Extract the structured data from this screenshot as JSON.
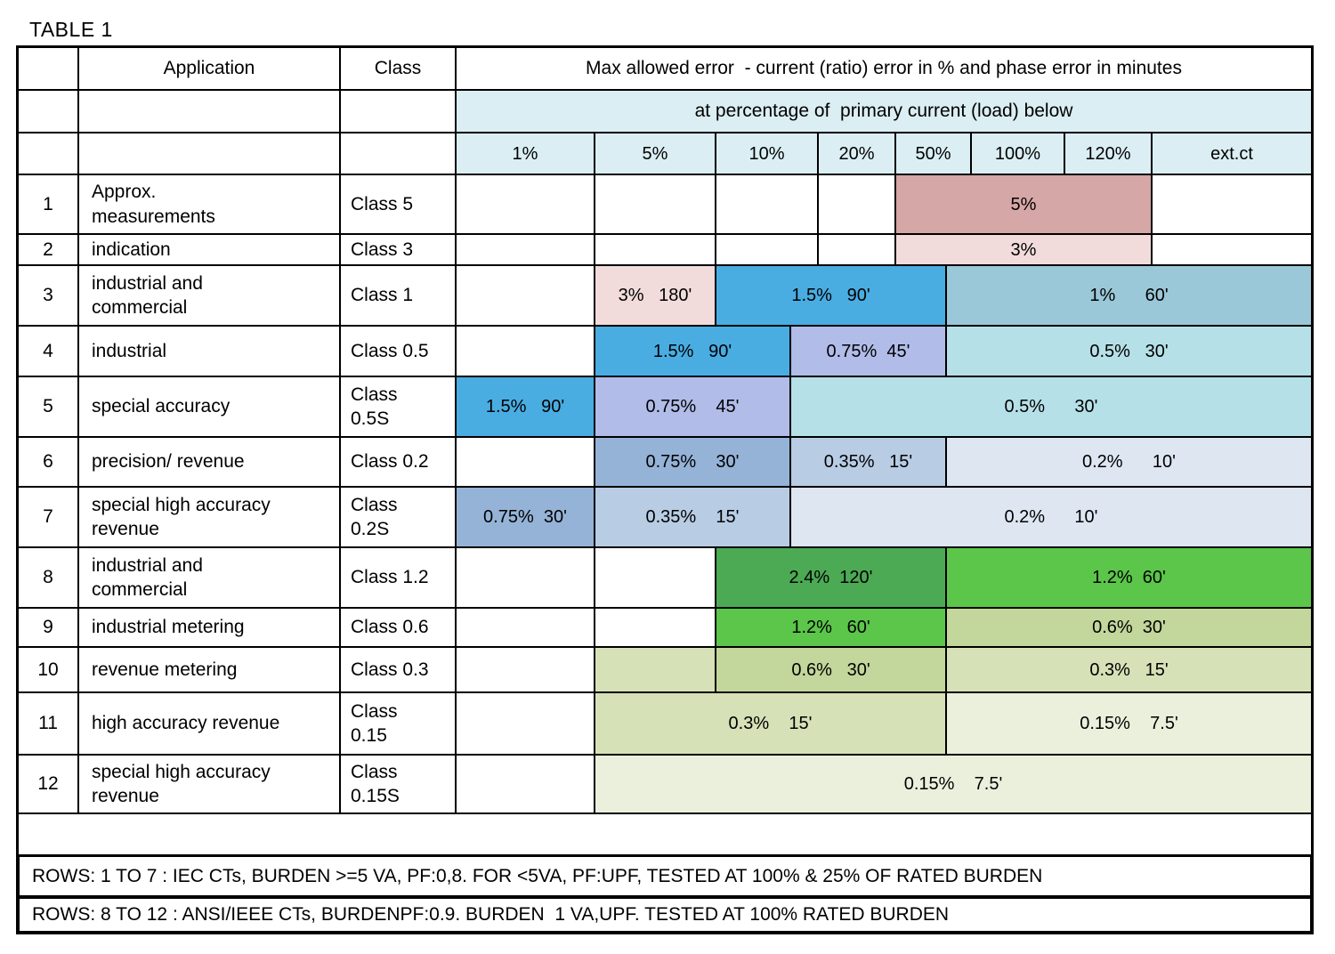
{
  "title": "TABLE 1",
  "header": {
    "application": "Application",
    "class": "Class",
    "max_error": "Max allowed error  - current (ratio) error in % and phase error in minutes",
    "at_percentage": "at percentage of  primary current (load) below",
    "load_levels": [
      "1%",
      "5%",
      "10%",
      "20%",
      "50%",
      "100%",
      "120%",
      "ext.ct"
    ]
  },
  "colors": {
    "header_blue": "#daeef3",
    "rose": "#d5a7a6",
    "pink_light": "#f1dcdb",
    "sky_blue": "#49ade2",
    "steel_blue": "#9ac8d8",
    "periwinkle": "#b1bce9",
    "light_cyan": "#b6e0e7",
    "slate_blue": "#95b3d7",
    "gray_blue": "#b8cce4",
    "pale_lavender": "#dde6f1",
    "med_green": "#4caa54",
    "bright_green": "#5bc64a",
    "sage": "#c3d69b",
    "light_sage": "#d6e1b7",
    "pale_sage": "#ebf0dd"
  },
  "rows": [
    {
      "num": "1",
      "application": "Approx.\nmeasurements",
      "class": "Class 5",
      "error_cells": [
        {
          "text": "5%",
          "from": "p50",
          "to": "ext",
          "color": "rose"
        }
      ]
    },
    {
      "num": "2",
      "application": "indication",
      "class": "Class 3",
      "error_cells": [
        {
          "text": "3%",
          "from": "p50",
          "to": "ext",
          "color": "pink_light"
        }
      ]
    },
    {
      "num": "3",
      "application": "industrial and\ncommercial",
      "class": "Class 1",
      "error_cells": [
        {
          "text": "3%   180'",
          "from": "p5",
          "to": "p10",
          "color": "pink_light"
        },
        {
          "text": "1.5%   90'",
          "from": "p10",
          "to": "m50",
          "color": "sky_blue"
        },
        {
          "text": "1%      60'",
          "from": "m50",
          "to": "end",
          "color": "steel_blue"
        }
      ]
    },
    {
      "num": "4",
      "application": "industrial",
      "class": "Class 0.5",
      "error_cells": [
        {
          "text": "1.5%   90'",
          "from": "p5",
          "to": "m10",
          "color": "sky_blue"
        },
        {
          "text": "0.75%  45'",
          "from": "m10",
          "to": "m50",
          "color": "periwinkle"
        },
        {
          "text": "0.5%   30'",
          "from": "m50",
          "to": "end",
          "color": "light_cyan"
        }
      ]
    },
    {
      "num": "5",
      "application": "special accuracy",
      "class": "Class\n0.5S",
      "error_cells": [
        {
          "text": "1.5%   90'",
          "from": "p1",
          "to": "p5",
          "color": "sky_blue"
        },
        {
          "text": "0.75%    45'",
          "from": "p5",
          "to": "m10",
          "color": "periwinkle"
        },
        {
          "text": "0.5%      30'",
          "from": "m10",
          "to": "end",
          "color": "light_cyan"
        }
      ]
    },
    {
      "num": "6",
      "application": "precision/ revenue",
      "class": "Class 0.2",
      "error_cells": [
        {
          "text": "0.75%    30'",
          "from": "p5",
          "to": "m10",
          "color": "slate_blue"
        },
        {
          "text": "0.35%   15'",
          "from": "m10",
          "to": "m50",
          "color": "gray_blue"
        },
        {
          "text": "0.2%      10'",
          "from": "m50",
          "to": "end",
          "color": "pale_lavender"
        }
      ]
    },
    {
      "num": "7",
      "application": "special high accuracy\nrevenue",
      "class": "Class\n0.2S",
      "error_cells": [
        {
          "text": "0.75%  30'",
          "from": "p1",
          "to": "p5",
          "color": "slate_blue"
        },
        {
          "text": "0.35%    15'",
          "from": "p5",
          "to": "m10",
          "color": "gray_blue"
        },
        {
          "text": "0.2%      10'",
          "from": "m10",
          "to": "end",
          "color": "pale_lavender"
        }
      ]
    },
    {
      "num": "8",
      "application": "industrial and\ncommercial",
      "class": "Class 1.2",
      "error_cells": [
        {
          "text": "2.4%  120'",
          "from": "p10",
          "to": "m50",
          "color": "med_green"
        },
        {
          "text": "1.2%  60'",
          "from": "m50",
          "to": "end",
          "color": "bright_green"
        }
      ]
    },
    {
      "num": "9",
      "application": "industrial metering",
      "class": "Class 0.6",
      "error_cells": [
        {
          "text": "1.2%   60'",
          "from": "p10",
          "to": "m50",
          "color": "bright_green"
        },
        {
          "text": "0.6%  30'",
          "from": "m50",
          "to": "end",
          "color": "sage"
        }
      ]
    },
    {
      "num": "10",
      "application": "revenue metering",
      "class": "Class 0.3",
      "error_cells": [
        {
          "text": "",
          "from": "p5",
          "to": "p10",
          "color": "light_sage"
        },
        {
          "text": "0.6%   30'",
          "from": "p10",
          "to": "m50",
          "color": "sage"
        },
        {
          "text": "0.3%   15'",
          "from": "m50",
          "to": "end",
          "color": "light_sage"
        }
      ]
    },
    {
      "num": "11",
      "application": "high accuracy revenue",
      "class": "Class\n0.15",
      "error_cells": [
        {
          "text": "0.3%    15'",
          "from": "p5",
          "to": "m50",
          "color": "light_sage"
        },
        {
          "text": "0.15%    7.5'",
          "from": "m50",
          "to": "end",
          "color": "pale_sage"
        }
      ]
    },
    {
      "num": "12",
      "application": "special high accuracy\nrevenue",
      "class": "Class\n0.15S",
      "error_cells": [
        {
          "text": "0.15%    7.5'",
          "from": "p5",
          "to": "end",
          "color": "pale_sage"
        }
      ]
    }
  ],
  "notes": [
    "ROWS: 1 TO 7 : IEC CTs, BURDEN >=5 VA, PF:0,8. FOR <5VA, PF:UPF, TESTED AT 100% & 25% OF RATED BURDEN",
    "ROWS: 8 TO 12 : ANSI/IEEE CTs, BURDENPF:0.9. BURDEN  1 VA,UPF. TESTED AT 100% RATED BURDEN"
  ]
}
